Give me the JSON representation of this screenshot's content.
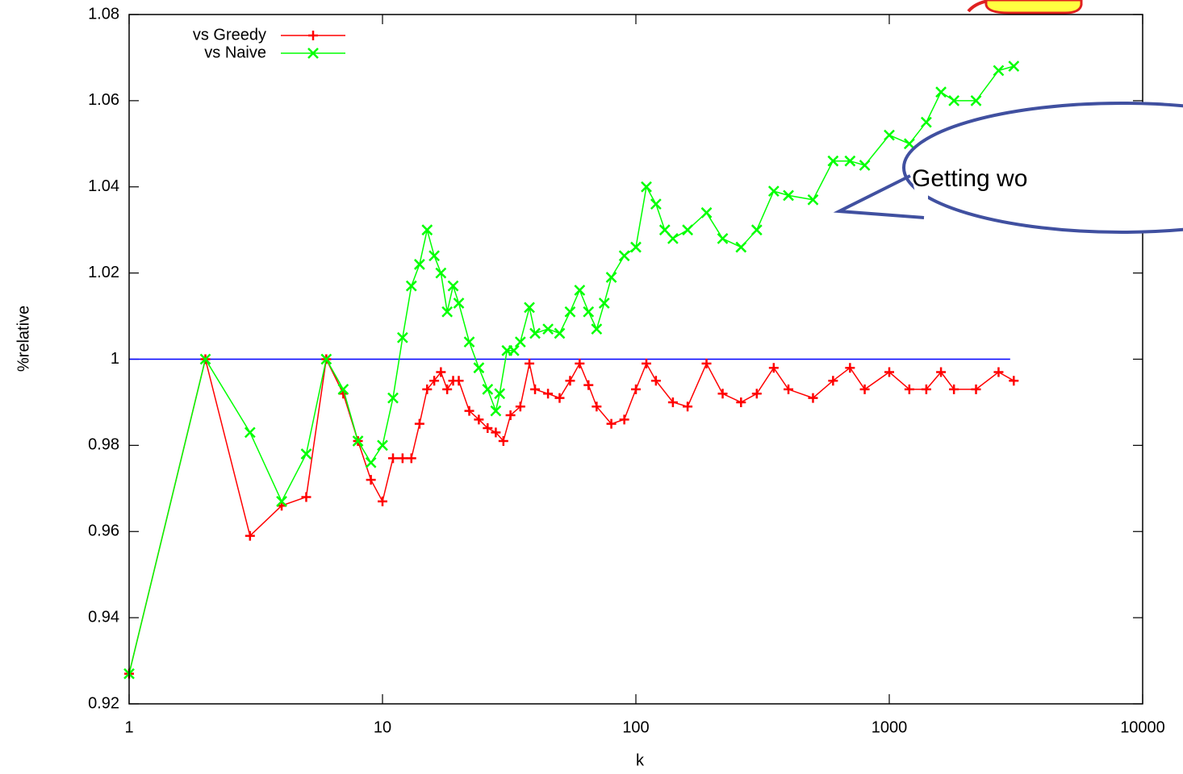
{
  "chart_data": {
    "type": "line",
    "x_label": "k",
    "y_label": "%relative",
    "log_x": true,
    "xlim": [
      1,
      10000
    ],
    "xticks": [
      1,
      10,
      100,
      1000,
      10000
    ],
    "ylim": [
      0.92,
      1.08
    ],
    "yticks": [
      0.92,
      0.94,
      0.96,
      0.98,
      1,
      1.02,
      1.04,
      1.06,
      1.08
    ],
    "legend": "top-left",
    "reference_line": {
      "y": 1,
      "x": [
        1,
        3000
      ],
      "color": "#0000ff"
    },
    "annotation": "Getting wo",
    "series": [
      {
        "name": "vs Greedy",
        "color": "#ff0000",
        "marker": "plus",
        "x": [
          1,
          2,
          3,
          4,
          5,
          6,
          7,
          8,
          9,
          10,
          11,
          12,
          13,
          14,
          15,
          16,
          17,
          18,
          19,
          20,
          22,
          24,
          26,
          28,
          30,
          32,
          35,
          38,
          40,
          45,
          50,
          55,
          60,
          65,
          70,
          80,
          90,
          100,
          110,
          120,
          140,
          160,
          190,
          220,
          260,
          300,
          350,
          400,
          500,
          600,
          700,
          800,
          1000,
          1200,
          1400,
          1600,
          1800,
          2200,
          2700,
          3100
        ],
        "values": [
          0.927,
          1.0,
          0.959,
          0.966,
          0.968,
          1.0,
          0.992,
          0.981,
          0.972,
          0.967,
          0.977,
          0.977,
          0.977,
          0.985,
          0.993,
          0.995,
          0.997,
          0.993,
          0.995,
          0.995,
          0.988,
          0.986,
          0.984,
          0.983,
          0.981,
          0.987,
          0.989,
          0.999,
          0.993,
          0.992,
          0.991,
          0.995,
          0.999,
          0.994,
          0.989,
          0.985,
          0.986,
          0.993,
          0.999,
          0.995,
          0.99,
          0.989,
          0.999,
          0.992,
          0.99,
          0.992,
          0.998,
          0.993,
          0.991,
          0.995,
          0.998,
          0.993,
          0.997,
          0.993,
          0.993,
          0.997,
          0.993,
          0.993,
          0.997,
          0.995
        ]
      },
      {
        "name": "vs Naive",
        "color": "#00ff00",
        "marker": "cross",
        "x": [
          1,
          2,
          3,
          4,
          5,
          6,
          7,
          8,
          9,
          10,
          11,
          12,
          13,
          14,
          15,
          16,
          17,
          18,
          19,
          20,
          22,
          24,
          26,
          28,
          29,
          31,
          33,
          35,
          38,
          40,
          45,
          50,
          55,
          60,
          65,
          70,
          75,
          80,
          90,
          100,
          110,
          120,
          130,
          140,
          160,
          190,
          220,
          260,
          300,
          350,
          400,
          500,
          600,
          700,
          800,
          1000,
          1200,
          1400,
          1600,
          1800,
          2200,
          2700,
          3100
        ],
        "values": [
          0.927,
          1.0,
          0.983,
          0.967,
          0.978,
          1.0,
          0.993,
          0.981,
          0.976,
          0.98,
          0.991,
          1.005,
          1.017,
          1.022,
          1.03,
          1.024,
          1.02,
          1.011,
          1.017,
          1.013,
          1.004,
          0.998,
          0.993,
          0.988,
          0.992,
          1.002,
          1.002,
          1.004,
          1.012,
          1.006,
          1.007,
          1.006,
          1.011,
          1.016,
          1.011,
          1.007,
          1.013,
          1.019,
          1.024,
          1.026,
          1.04,
          1.036,
          1.03,
          1.028,
          1.03,
          1.034,
          1.028,
          1.026,
          1.03,
          1.039,
          1.038,
          1.037,
          1.046,
          1.046,
          1.045,
          1.052,
          1.05,
          1.055,
          1.062,
          1.06,
          1.06,
          1.067,
          1.068
        ]
      }
    ]
  }
}
